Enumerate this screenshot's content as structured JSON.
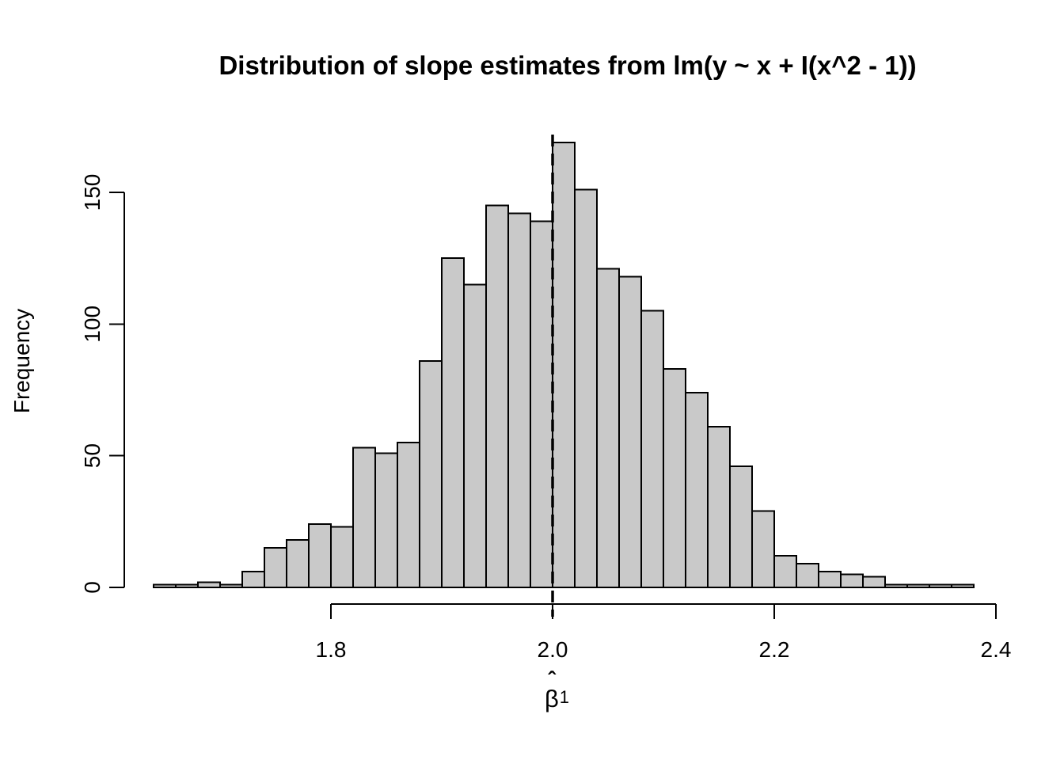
{
  "title": "Distribution of slope estimates from lm(y ~ x + I(x^2 - 1))",
  "y_axis": {
    "label": "Frequency",
    "ticks": [
      0,
      50,
      100,
      150
    ]
  },
  "x_axis": {
    "ticks": [
      "1.8",
      "2.0",
      "2.2",
      "2.4"
    ],
    "tick_values": [
      1.8,
      2.0,
      2.2,
      2.4
    ],
    "label_symbol": "β",
    "label_hat": "ˆ",
    "label_subscript": "1"
  },
  "chart_data": {
    "type": "bar",
    "subtype": "histogram",
    "title": "Distribution of slope estimates from lm(y ~ x + I(x^2 - 1))",
    "xlabel": "beta-hat-1",
    "ylabel": "Frequency",
    "bin_start": 1.64,
    "bin_width": 0.02,
    "counts": [
      1,
      1,
      2,
      1,
      6,
      15,
      18,
      24,
      23,
      53,
      51,
      55,
      86,
      125,
      115,
      145,
      142,
      139,
      169,
      151,
      121,
      118,
      105,
      83,
      74,
      61,
      46,
      29,
      12,
      9,
      6,
      5,
      4,
      1,
      1,
      1,
      1
    ],
    "xlim": [
      1.64,
      2.4
    ],
    "ylim": [
      0,
      169
    ],
    "grid": false,
    "vline_x": 2.0,
    "vline_style": "dashed",
    "bar_fill": "#c9c9c9",
    "bar_stroke": "#000000",
    "axis_color": "#000000",
    "background": "#ffffff"
  }
}
